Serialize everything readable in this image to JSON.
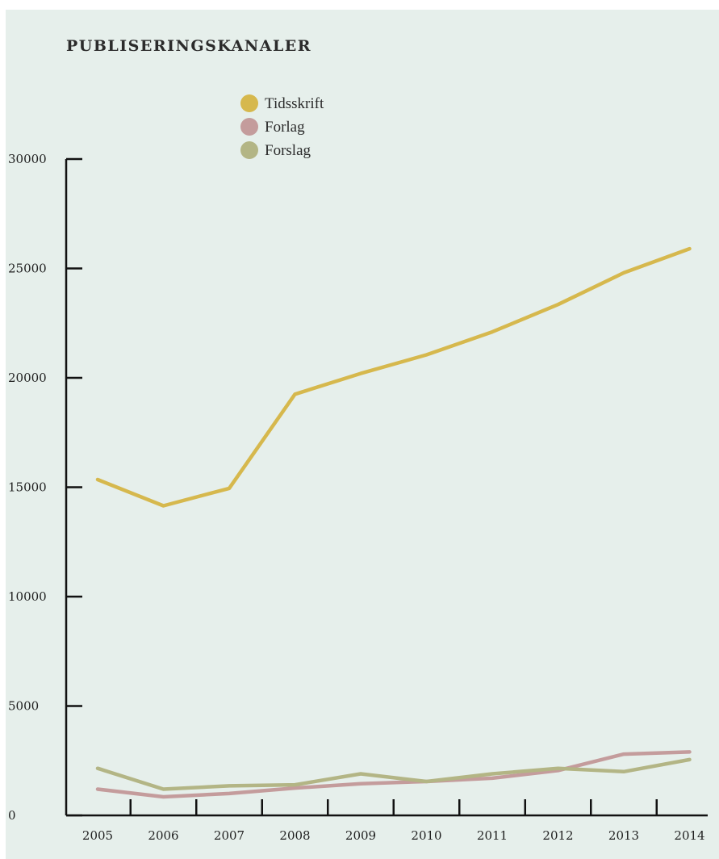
{
  "title": "PUBLISERINGSKANALER",
  "chart_data": {
    "type": "line",
    "title": "PUBLISERINGSKANALER",
    "xlabel": "",
    "ylabel": "",
    "x": [
      2005,
      2006,
      2007,
      2008,
      2009,
      2010,
      2011,
      2012,
      2013,
      2014
    ],
    "x_tick_labels": [
      "2005",
      "2006",
      "2007",
      "2008",
      "2009",
      "2010",
      "2011",
      "2012",
      "2013",
      "2014"
    ],
    "ylim": [
      0,
      30000
    ],
    "y_ticks": [
      0,
      5000,
      10000,
      15000,
      20000,
      25000,
      30000
    ],
    "y_tick_labels": [
      "0",
      "5000",
      "10000",
      "15000",
      "20000",
      "25000",
      "30000"
    ],
    "grid": false,
    "legend_position": "top-center",
    "series": [
      {
        "name": "Tidsskrift",
        "color": "#d6b84d",
        "values": [
          15350,
          14150,
          14950,
          19250,
          20200,
          21050,
          22100,
          23350,
          24800,
          25900
        ]
      },
      {
        "name": "Forlag",
        "color": "#c49c9c",
        "values": [
          1200,
          850,
          1000,
          1250,
          1450,
          1550,
          1700,
          2050,
          2800,
          2900
        ]
      },
      {
        "name": "Forslag",
        "color": "#b3b585",
        "values": [
          2150,
          1200,
          1350,
          1400,
          1900,
          1550,
          1900,
          2150,
          2000,
          2550
        ]
      }
    ]
  }
}
